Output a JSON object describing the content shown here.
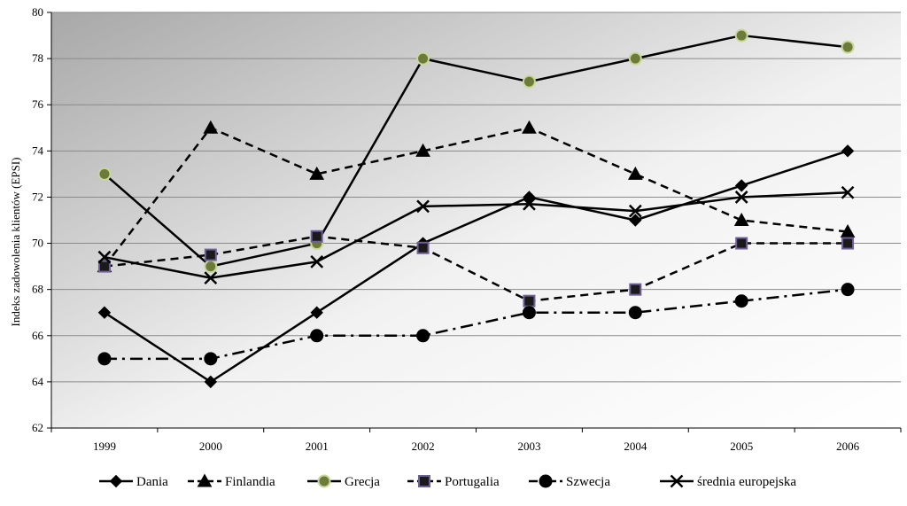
{
  "chart_data": {
    "type": "line",
    "title": "",
    "xlabel": "",
    "ylabel": "Indeks zadowolenia klientów (EPSI)",
    "ylim": [
      62,
      80
    ],
    "ytick_step": 2,
    "grid": "horizontal",
    "legend_position": "bottom",
    "categories": [
      "1999",
      "2000",
      "2001",
      "2002",
      "2003",
      "2004",
      "2005",
      "2006"
    ],
    "series": [
      {
        "name": "Dania",
        "values": [
          67,
          64,
          67,
          70,
          72,
          71,
          72.5,
          74
        ],
        "dash": "solid",
        "marker": "diamond",
        "marker_fill": "#000000",
        "marker_stroke": "#000000"
      },
      {
        "name": "Finlandia",
        "values": [
          69,
          75,
          73,
          74,
          75,
          73,
          71,
          70.5
        ],
        "dash": "dashed",
        "marker": "triangle",
        "marker_fill": "#000000",
        "marker_stroke": "#000000"
      },
      {
        "name": "Grecja",
        "values": [
          73,
          69,
          70,
          78,
          77,
          78,
          79,
          78.5
        ],
        "dash": "solid",
        "marker": "circle",
        "marker_fill": "#6c7a3a",
        "marker_stroke": "#c8d79a"
      },
      {
        "name": "Portugalia",
        "values": [
          69,
          69.5,
          70.3,
          69.8,
          67.5,
          68,
          70,
          70
        ],
        "dash": "dashed",
        "marker": "square",
        "marker_fill": "#1a1a1a",
        "marker_stroke": "#6f5f97"
      },
      {
        "name": "Szwecja",
        "values": [
          65,
          65,
          66,
          66,
          67,
          67,
          67.5,
          68
        ],
        "dash": "dashdot",
        "marker": "circle",
        "marker_fill": "#000000",
        "marker_stroke": "#000000"
      },
      {
        "name": "średnia europejska",
        "values": [
          69.4,
          68.5,
          69.2,
          71.6,
          71.7,
          71.4,
          72,
          72.2
        ],
        "dash": "solid",
        "marker": "x",
        "marker_fill": "#000000",
        "marker_stroke": "#000000"
      }
    ],
    "colors": {
      "line": "#000000",
      "grid": "#8a8a8a",
      "plot_bg_dark": "#a8a8a8",
      "plot_bg_light": "#ffffff"
    }
  }
}
